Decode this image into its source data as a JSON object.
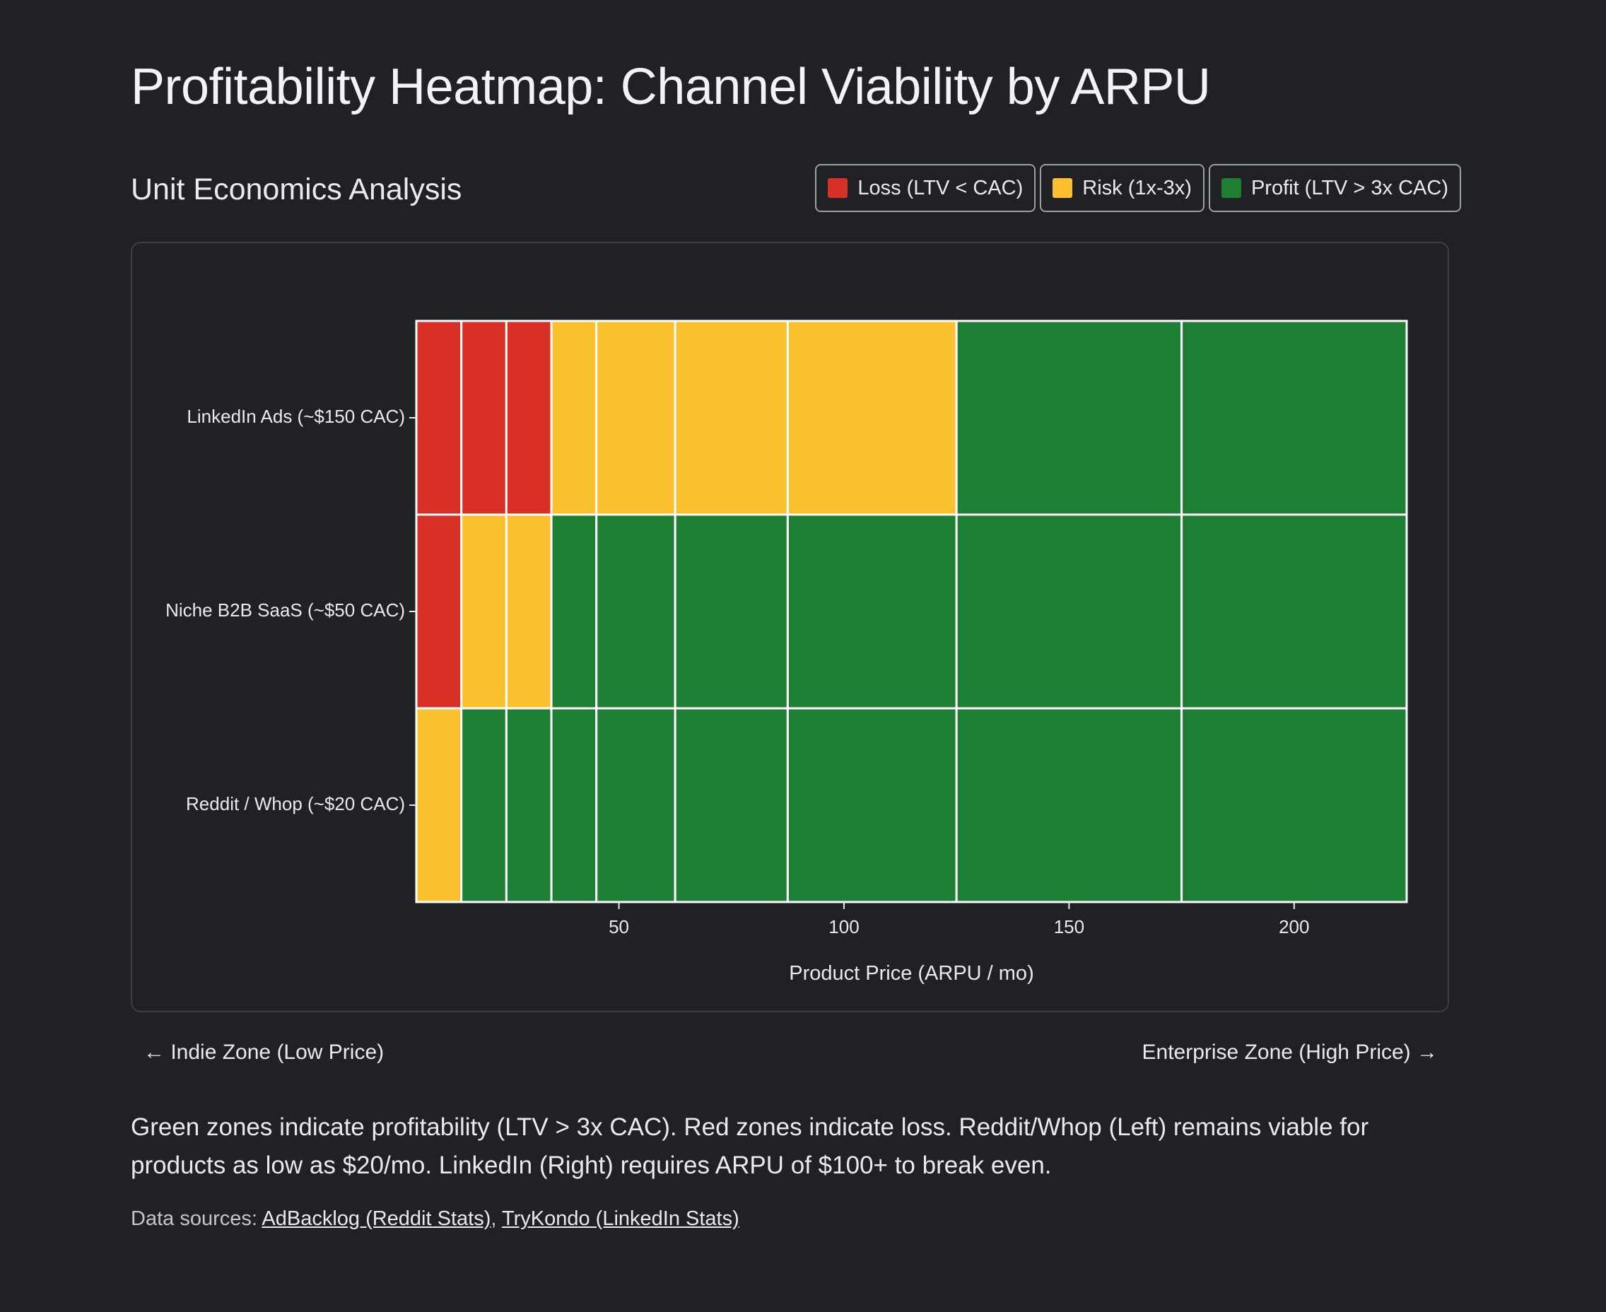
{
  "page": {
    "title": "Profitability Heatmap: Channel Viability by ARPU",
    "subtitle": "Unit Economics Analysis",
    "zone_left": "← Indie Zone (Low Price)",
    "zone_right": "Enterprise Zone (High Price) →",
    "description": "Green zones indicate profitability (LTV > 3x CAC). Red zones indicate loss. Reddit/Whop (Left) remains viable for products as low as $20/mo. LinkedIn (Right) requires ARPU of $100+ to break even.",
    "sources_prefix": "Data sources: ",
    "sources": [
      {
        "label": "AdBacklog (Reddit Stats)"
      },
      {
        "label": "TryKondo (LinkedIn Stats)"
      }
    ],
    "sources_separator": ", "
  },
  "legend": [
    {
      "label": "Loss (LTV < CAC)",
      "color": "#d93025",
      "key": "loss"
    },
    {
      "label": "Risk (1x-3x)",
      "color": "#fbc02d",
      "key": "risk"
    },
    {
      "label": "Profit (LTV > 3x CAC)",
      "color": "#1e7e34",
      "key": "profit"
    }
  ],
  "chart_data": {
    "type": "heatmap",
    "title": "Profitability Heatmap: Channel Viability by ARPU",
    "subtitle": "Unit Economics Analysis",
    "xlabel": "Product Price (ARPU / mo)",
    "ylabel": "",
    "xlim": [
      5,
      225
    ],
    "xticks": [
      50,
      100,
      150,
      200
    ],
    "x_bins": [
      5,
      15,
      25,
      35,
      45,
      62.5,
      87.5,
      125,
      175,
      225
    ],
    "rows": [
      {
        "label": "LinkedIn Ads (~$150 CAC)",
        "cells": [
          "loss",
          "loss",
          "loss",
          "risk",
          "risk",
          "risk",
          "risk",
          "profit",
          "profit"
        ]
      },
      {
        "label": "Niche B2B SaaS (~$50 CAC)",
        "cells": [
          "loss",
          "risk",
          "risk",
          "profit",
          "profit",
          "profit",
          "profit",
          "profit",
          "profit"
        ]
      },
      {
        "label": "Reddit / Whop (~$20 CAC)",
        "cells": [
          "risk",
          "profit",
          "profit",
          "profit",
          "profit",
          "profit",
          "profit",
          "profit",
          "profit"
        ]
      }
    ],
    "categories": {
      "loss": "#d93025",
      "risk": "#fbc02d",
      "profit": "#1e7e34"
    },
    "legend": [
      "Loss (LTV < CAC)",
      "Risk (1x-3x)",
      "Profit (LTV > 3x CAC)"
    ],
    "legend_position": "top-right",
    "grid": false
  }
}
